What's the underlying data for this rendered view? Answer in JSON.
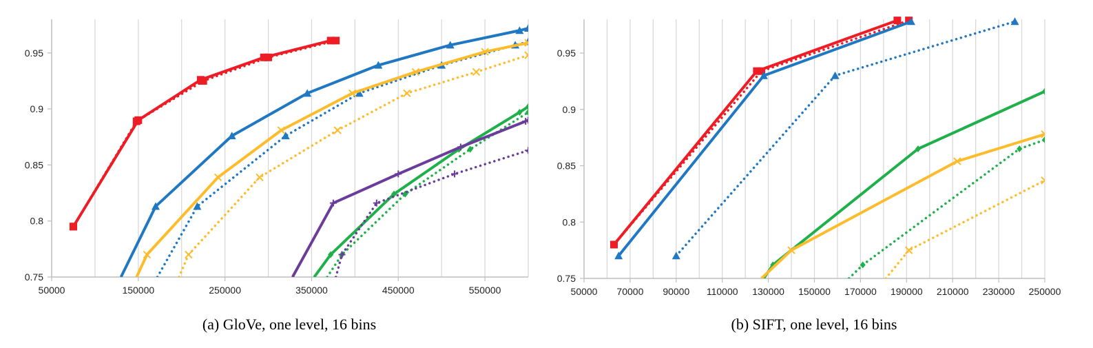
{
  "chart_data": [
    {
      "type": "line",
      "caption": "(a) GloVe, one level, 16 bins",
      "xlim": [
        50000,
        600000
      ],
      "ylim": [
        0.75,
        0.98
      ],
      "xticks": [
        50000,
        150000,
        250000,
        350000,
        450000,
        550000
      ],
      "xtick_labels": [
        "50000",
        "150000",
        "250000",
        "350000",
        "450000",
        "550000"
      ],
      "xgrid": [
        50000,
        100000,
        150000,
        200000,
        250000,
        300000,
        350000,
        400000,
        450000,
        500000,
        550000
      ],
      "yticks": [
        0.75,
        0.8,
        0.85,
        0.9,
        0.95
      ],
      "ytick_labels": [
        "0.75",
        "0.8",
        "0.85",
        "0.9",
        "0.95"
      ],
      "grid": true,
      "series": [
        {
          "name": "red solid",
          "color": "#ee1c25",
          "style": "solid",
          "marker": "square",
          "x": [
            75000,
            150000,
            222000,
            295000,
            372000
          ],
          "y": [
            0.795,
            0.89,
            0.926,
            0.946,
            0.961
          ]
        },
        {
          "name": "red dotted",
          "color": "#ee1c25",
          "style": "dotted",
          "marker": "square",
          "x": [
            75000,
            148000,
            225000,
            300000,
            378000
          ],
          "y": [
            0.795,
            0.889,
            0.925,
            0.946,
            0.961
          ]
        },
        {
          "name": "blue solid",
          "color": "#1f78c1",
          "style": "solid",
          "marker": "triangle",
          "x": [
            130000,
            170000,
            258000,
            345000,
            427000,
            510000,
            590000,
            600000
          ],
          "y": [
            0.75,
            0.813,
            0.876,
            0.914,
            0.939,
            0.957,
            0.97,
            0.972
          ]
        },
        {
          "name": "blue dotted",
          "color": "#1f78c1",
          "style": "dotted",
          "marker": "triangle",
          "x": [
            172000,
            218000,
            320000,
            405000,
            500000,
            585000,
            600000
          ],
          "y": [
            0.75,
            0.813,
            0.876,
            0.914,
            0.939,
            0.957,
            0.96
          ]
        },
        {
          "name": "yellow solid",
          "color": "#fdbc2c",
          "style": "solid",
          "marker": "x",
          "x": [
            148000,
            160000,
            242000,
            315000,
            397000,
            470000,
            550000,
            600000
          ],
          "y": [
            0.75,
            0.77,
            0.839,
            0.881,
            0.914,
            0.933,
            0.951,
            0.959
          ]
        },
        {
          "name": "yellow dotted",
          "color": "#fdbc2c",
          "style": "dotted",
          "marker": "x",
          "x": [
            197000,
            208000,
            290000,
            380000,
            460000,
            540000,
            600000
          ],
          "y": [
            0.75,
            0.77,
            0.839,
            0.881,
            0.914,
            0.933,
            0.948
          ]
        },
        {
          "name": "green solid",
          "color": "#1fb04b",
          "style": "solid",
          "marker": "diamond",
          "x": [
            353000,
            372000,
            445000,
            520000,
            590000,
            600000
          ],
          "y": [
            0.75,
            0.77,
            0.824,
            0.864,
            0.897,
            0.902
          ]
        },
        {
          "name": "green dotted",
          "color": "#1fb04b",
          "style": "dotted",
          "marker": "diamond",
          "x": [
            368000,
            385000,
            458000,
            533000,
            600000
          ],
          "y": [
            0.75,
            0.77,
            0.824,
            0.864,
            0.897
          ]
        },
        {
          "name": "purple solid",
          "color": "#6a3d9a",
          "style": "solid",
          "marker": "plus",
          "x": [
            328000,
            375000,
            450000,
            522000,
            597000,
            600000
          ],
          "y": [
            0.75,
            0.816,
            0.842,
            0.866,
            0.889,
            0.89
          ]
        },
        {
          "name": "purple dotted",
          "color": "#6a3d9a",
          "style": "dotted",
          "marker": "plus",
          "x": [
            378000,
            385000,
            425000,
            515000,
            600000
          ],
          "y": [
            0.75,
            0.77,
            0.816,
            0.842,
            0.863
          ]
        }
      ]
    },
    {
      "type": "line",
      "caption": "(b) SIFT, one level, 16 bins",
      "xlim": [
        50000,
        250000
      ],
      "ylim": [
        0.75,
        0.98
      ],
      "xticks": [
        50000,
        70000,
        90000,
        110000,
        130000,
        150000,
        170000,
        190000,
        210000,
        230000,
        250000
      ],
      "xtick_labels": [
        "50000",
        "70000",
        "90000",
        "110000",
        "130000",
        "150000",
        "170000",
        "190000",
        "210000",
        "230000",
        "250000"
      ],
      "xgrid": [
        50000,
        60000,
        70000,
        80000,
        90000,
        100000,
        110000,
        120000,
        130000,
        140000,
        150000,
        160000,
        170000,
        180000,
        190000,
        200000,
        210000,
        220000,
        230000,
        240000
      ],
      "yticks": [
        0.75,
        0.8,
        0.85,
        0.9,
        0.95
      ],
      "ytick_labels": [
        "0.75",
        "0.8",
        "0.85",
        "0.9",
        "0.95"
      ],
      "grid": true,
      "series": [
        {
          "name": "red solid",
          "color": "#ee1c25",
          "style": "solid",
          "marker": "square",
          "x": [
            63000,
            125000,
            186000
          ],
          "y": [
            0.78,
            0.934,
            0.979
          ]
        },
        {
          "name": "red dotted",
          "color": "#ee1c25",
          "style": "dotted",
          "marker": "square",
          "x": [
            63000,
            127000,
            191000
          ],
          "y": [
            0.78,
            0.934,
            0.979
          ]
        },
        {
          "name": "blue solid",
          "color": "#1f78c1",
          "style": "solid",
          "marker": "triangle",
          "x": [
            65000,
            128000,
            192000
          ],
          "y": [
            0.77,
            0.93,
            0.978
          ]
        },
        {
          "name": "blue dotted",
          "color": "#1f78c1",
          "style": "dotted",
          "marker": "triangle",
          "x": [
            90000,
            159000,
            237000
          ],
          "y": [
            0.77,
            0.93,
            0.978
          ]
        },
        {
          "name": "green solid",
          "color": "#1fb04b",
          "style": "solid",
          "marker": "diamond",
          "x": [
            128000,
            132000,
            195000,
            250000
          ],
          "y": [
            0.75,
            0.762,
            0.865,
            0.916
          ]
        },
        {
          "name": "green dotted",
          "color": "#1fb04b",
          "style": "dotted",
          "marker": "diamond",
          "x": [
            165000,
            171000,
            239000,
            250000
          ],
          "y": [
            0.75,
            0.762,
            0.865,
            0.873
          ]
        },
        {
          "name": "yellow solid",
          "color": "#fdbc2c",
          "style": "solid",
          "marker": "x",
          "x": [
            127000,
            140000,
            212000,
            250000
          ],
          "y": [
            0.75,
            0.775,
            0.854,
            0.878
          ]
        },
        {
          "name": "yellow dotted",
          "color": "#fdbc2c",
          "style": "dotted",
          "marker": "x",
          "x": [
            181000,
            191000,
            250000
          ],
          "y": [
            0.75,
            0.775,
            0.837
          ]
        }
      ]
    }
  ]
}
